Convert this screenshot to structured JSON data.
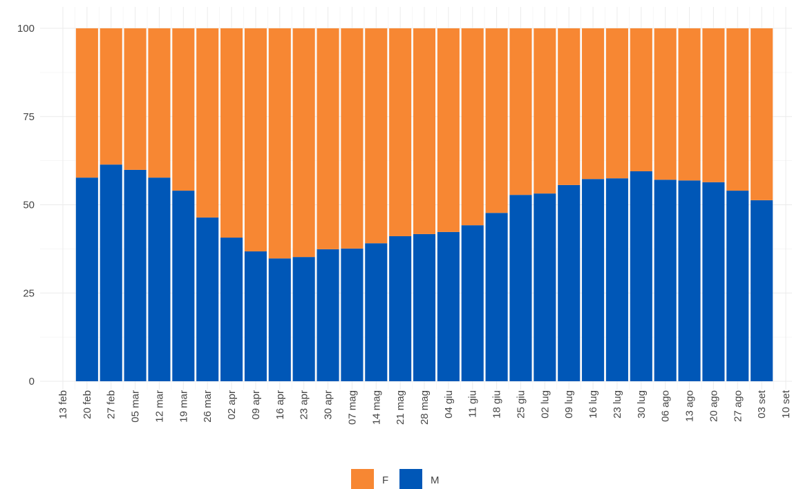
{
  "chart_data": {
    "type": "stacked_bar_percent",
    "categories": [
      "13 feb",
      "20 feb",
      "27 feb",
      "05 mar",
      "12 mar",
      "19 mar",
      "26 mar",
      "02 apr",
      "09 apr",
      "16 apr",
      "23 apr",
      "30 apr",
      "07 mag",
      "14 mag",
      "21 mag",
      "28 mag",
      "04 giu",
      "11 giu",
      "18 giu",
      "25 giu",
      "02 lug",
      "09 lug",
      "16 lug",
      "23 lug",
      "30 lug",
      "06 ago",
      "13 ago",
      "20 ago",
      "27 ago",
      "03 set",
      "10 set"
    ],
    "series": [
      {
        "name": "F",
        "color": "#f78733",
        "values": [
          null,
          42.3,
          38.6,
          40.1,
          42.3,
          46.0,
          53.6,
          59.3,
          63.2,
          65.2,
          64.8,
          62.6,
          62.4,
          60.9,
          58.9,
          58.3,
          57.7,
          55.8,
          52.3,
          47.2,
          46.8,
          44.4,
          42.7,
          42.5,
          40.5,
          42.9,
          43.1,
          43.6,
          46.0,
          48.7,
          null
        ]
      },
      {
        "name": "M",
        "color": "#0057b7",
        "values": [
          null,
          57.7,
          61.4,
          59.9,
          57.7,
          54.0,
          46.4,
          40.7,
          36.8,
          34.8,
          35.2,
          37.4,
          37.6,
          39.1,
          41.1,
          41.7,
          42.3,
          44.2,
          47.7,
          52.8,
          53.2,
          55.6,
          57.3,
          57.5,
          59.5,
          57.1,
          56.9,
          56.4,
          54.0,
          51.3,
          null
        ]
      }
    ],
    "ylim": [
      0,
      100
    ],
    "yticks": [
      0,
      25,
      50,
      75,
      100
    ],
    "grid": true,
    "legend": "bottom"
  }
}
